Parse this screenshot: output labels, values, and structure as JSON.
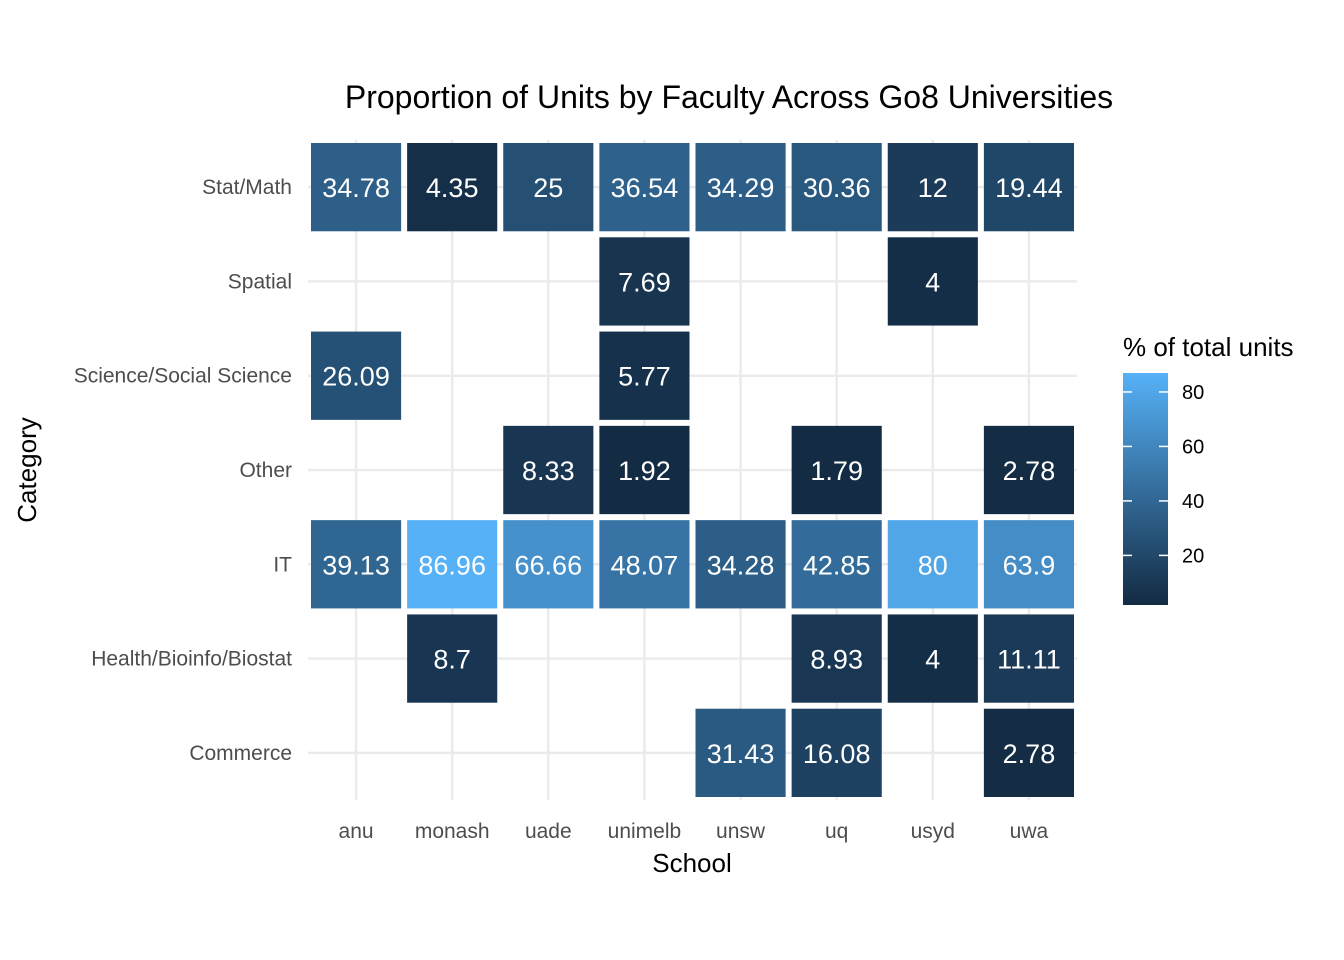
{
  "chart_data": {
    "type": "heatmap",
    "title": "Proportion of Units by Faculty Across Go8 Universities",
    "xlabel": "School",
    "ylabel": "Category",
    "x_categories": [
      "anu",
      "monash",
      "uade",
      "unimelb",
      "unsw",
      "uq",
      "usyd",
      "uwa"
    ],
    "y_categories": [
      "Commerce",
      "Health/Bioinfo/Biostat",
      "IT",
      "Other",
      "Science/Social Science",
      "Spatial",
      "Stat/Math"
    ],
    "cells": [
      {
        "x": "anu",
        "y": "Stat/Math",
        "value": 34.78,
        "label": "34.78"
      },
      {
        "x": "monash",
        "y": "Stat/Math",
        "value": 4.35,
        "label": "4.35"
      },
      {
        "x": "uade",
        "y": "Stat/Math",
        "value": 25,
        "label": "25"
      },
      {
        "x": "unimelb",
        "y": "Stat/Math",
        "value": 36.54,
        "label": "36.54"
      },
      {
        "x": "unsw",
        "y": "Stat/Math",
        "value": 34.29,
        "label": "34.29"
      },
      {
        "x": "uq",
        "y": "Stat/Math",
        "value": 30.36,
        "label": "30.36"
      },
      {
        "x": "usyd",
        "y": "Stat/Math",
        "value": 12,
        "label": "12"
      },
      {
        "x": "uwa",
        "y": "Stat/Math",
        "value": 19.44,
        "label": "19.44"
      },
      {
        "x": "unimelb",
        "y": "Spatial",
        "value": 7.69,
        "label": "7.69"
      },
      {
        "x": "usyd",
        "y": "Spatial",
        "value": 4,
        "label": "4"
      },
      {
        "x": "anu",
        "y": "Science/Social Science",
        "value": 26.09,
        "label": "26.09"
      },
      {
        "x": "unimelb",
        "y": "Science/Social Science",
        "value": 5.77,
        "label": "5.77"
      },
      {
        "x": "uade",
        "y": "Other",
        "value": 8.33,
        "label": "8.33"
      },
      {
        "x": "unimelb",
        "y": "Other",
        "value": 1.92,
        "label": "1.92"
      },
      {
        "x": "uq",
        "y": "Other",
        "value": 1.79,
        "label": "1.79"
      },
      {
        "x": "uwa",
        "y": "Other",
        "value": 2.78,
        "label": "2.78"
      },
      {
        "x": "anu",
        "y": "IT",
        "value": 39.13,
        "label": "39.13"
      },
      {
        "x": "monash",
        "y": "IT",
        "value": 86.96,
        "label": "86.96"
      },
      {
        "x": "uade",
        "y": "IT",
        "value": 66.66,
        "label": "66.66"
      },
      {
        "x": "unimelb",
        "y": "IT",
        "value": 48.07,
        "label": "48.07"
      },
      {
        "x": "unsw",
        "y": "IT",
        "value": 34.28,
        "label": "34.28"
      },
      {
        "x": "uq",
        "y": "IT",
        "value": 42.85,
        "label": "42.85"
      },
      {
        "x": "usyd",
        "y": "IT",
        "value": 80,
        "label": "80"
      },
      {
        "x": "uwa",
        "y": "IT",
        "value": 63.9,
        "label": "63.9"
      },
      {
        "x": "monash",
        "y": "Health/Bioinfo/Biostat",
        "value": 8.7,
        "label": "8.7"
      },
      {
        "x": "uq",
        "y": "Health/Bioinfo/Biostat",
        "value": 8.93,
        "label": "8.93"
      },
      {
        "x": "usyd",
        "y": "Health/Bioinfo/Biostat",
        "value": 4,
        "label": "4"
      },
      {
        "x": "uwa",
        "y": "Health/Bioinfo/Biostat",
        "value": 11.11,
        "label": "11.11"
      },
      {
        "x": "unsw",
        "y": "Commerce",
        "value": 31.43,
        "label": "31.43"
      },
      {
        "x": "uq",
        "y": "Commerce",
        "value": 16.08,
        "label": "16.08"
      },
      {
        "x": "uwa",
        "y": "Commerce",
        "value": 2.78,
        "label": "2.78"
      }
    ],
    "legend": {
      "title": "% of total units",
      "placement": "right",
      "ticks": [
        20,
        40,
        60,
        80
      ],
      "range": [
        1.79,
        86.96
      ],
      "color_low": "#132B43",
      "color_high": "#56B1F7"
    },
    "grid": true
  }
}
